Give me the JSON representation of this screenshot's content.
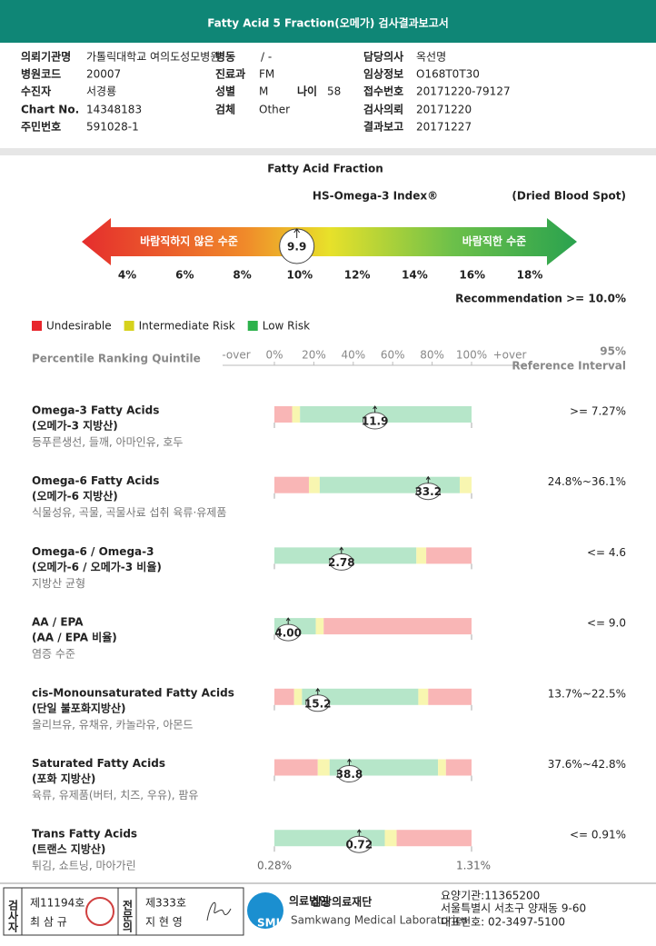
{
  "header": {
    "title": "Fatty Acid 5 Fraction(오메가) 검사결과보고서"
  },
  "patient_info": [
    {
      "label": "의뢰기관명",
      "value": "가톨릭대학교 여의도성모병원"
    },
    {
      "label": "병동",
      "value": "/ -"
    },
    {
      "label": "담당의사",
      "value": "옥선명"
    },
    {
      "label": "병원코드",
      "value": "20007"
    },
    {
      "label": "진료과",
      "value": "FM"
    },
    {
      "label": "임상정보",
      "value": "O168T0T30"
    },
    {
      "label": "수진자",
      "value": "서경룡"
    },
    {
      "label": "성별",
      "value": "M"
    },
    {
      "label": "나이",
      "value": "58"
    },
    {
      "label": "접수번호",
      "value": "20171220-79127"
    },
    {
      "label": "Chart No.",
      "value": "14348183"
    },
    {
      "label": "검체",
      "value": "Other"
    },
    {
      "label": "검사의뢰",
      "value": "20171220"
    },
    {
      "label": "주민번호",
      "value": "591028-1"
    },
    {
      "label": "결과보고",
      "value": "20171227"
    }
  ],
  "index": {
    "title": "Fatty Acid Fraction",
    "subtitle": "HS-Omega-3 Index®",
    "sample": "(Dried Blood Spot)",
    "low_label": "바람직하지 않은 수준",
    "high_label": "바람직한 수준",
    "value": 9.9,
    "ticks": [
      {
        "value": 4,
        "label": "4%"
      },
      {
        "value": 6,
        "label": "6%"
      },
      {
        "value": 8,
        "label": "8%"
      },
      {
        "value": 10,
        "label": "10%"
      },
      {
        "value": 12,
        "label": "12%"
      },
      {
        "value": 14,
        "label": "14%"
      },
      {
        "value": 16,
        "label": "16%"
      },
      {
        "value": 18,
        "label": "18%"
      }
    ],
    "recommendation": "Recommendation  >= 10.0%"
  },
  "legend": [
    {
      "label": "Undesirable",
      "color": "#e8262c"
    },
    {
      "label": "Intermediate Risk",
      "color": "#d6d21c"
    },
    {
      "label": "Low Risk",
      "color": "#2db24c"
    }
  ],
  "percentile": {
    "title": "Percentile Ranking Quintile",
    "over_low": "-over",
    "over_high": "+over",
    "ticks": [
      {
        "value": 0,
        "label": "0%"
      },
      {
        "value": 20,
        "label": "20%"
      },
      {
        "value": 40,
        "label": "40%"
      },
      {
        "value": 60,
        "label": "60%"
      },
      {
        "value": 80,
        "label": "80%"
      },
      {
        "value": 100,
        "label": "100%"
      }
    ],
    "ref_title": "95%",
    "ref_subtitle": "Reference Interval"
  },
  "rows": [
    {
      "name": "Omega-3 Fatty Acids",
      "korean": "(오메가-3 지방산)",
      "foods": "등푸른생선, 들깨, 아마인유, 호두",
      "value": 11.9,
      "percentile": 51,
      "reference": ">= 7.27%",
      "zones": [
        {
          "color": "#f9b6b6",
          "from": 0,
          "to": 9
        },
        {
          "color": "#f8f6b0",
          "from": 9,
          "to": 13
        },
        {
          "color": "#b6e6c9",
          "from": 13,
          "to": 100
        }
      ]
    },
    {
      "name": "Omega-6 Fatty Acids",
      "korean": "(오메가-6 지방산)",
      "foods": "식물성유, 곡물, 곡물사료 섭취 육류·유제품",
      "value": 33.2,
      "percentile": 78,
      "reference": "24.8%~36.1%",
      "zones": [
        {
          "color": "#f9b6b6",
          "from": 0,
          "to": 17.5
        },
        {
          "color": "#f8f6b0",
          "from": 17.5,
          "to": 23
        },
        {
          "color": "#b6e6c9",
          "from": 23,
          "to": 94
        },
        {
          "color": "#f8f6b0",
          "from": 94,
          "to": 100
        }
      ]
    },
    {
      "name": "Omega-6 / Omega-3",
      "korean": "(오메가-6 / 오메가-3 비율)",
      "foods": "지방산 균형",
      "value": 2.78,
      "percentile": 34,
      "reference": "<= 4.6",
      "zones": [
        {
          "color": "#b6e6c9",
          "from": 0,
          "to": 72
        },
        {
          "color": "#f8f6b0",
          "from": 72,
          "to": 77
        },
        {
          "color": "#f9b6b6",
          "from": 77,
          "to": 100
        }
      ]
    },
    {
      "name": "AA / EPA",
      "korean": "(AA / EPA 비율)",
      "foods": "염증 수준",
      "value": 4,
      "value_label": "4.00",
      "percentile": 7,
      "reference": "<= 9.0",
      "zones": [
        {
          "color": "#b6e6c9",
          "from": 0,
          "to": 21
        },
        {
          "color": "#f8f6b0",
          "from": 21,
          "to": 25
        },
        {
          "color": "#f9b6b6",
          "from": 25,
          "to": 100
        }
      ]
    },
    {
      "name": "cis-Monounsaturated Fatty Acids",
      "korean": "(단일 불포화지방산)",
      "foods": "올리브유, 유채유, 카놀라유, 아몬드",
      "value": 15.2,
      "percentile": 22,
      "reference": "13.7%~22.5%",
      "zones": [
        {
          "color": "#f9b6b6",
          "from": 0,
          "to": 10
        },
        {
          "color": "#f8f6b0",
          "from": 10,
          "to": 14
        },
        {
          "color": "#b6e6c9",
          "from": 14,
          "to": 73
        },
        {
          "color": "#f8f6b0",
          "from": 73,
          "to": 78
        },
        {
          "color": "#f9b6b6",
          "from": 78,
          "to": 100
        }
      ]
    },
    {
      "name": "Saturated Fatty Acids",
      "korean": "(포화 지방산)",
      "foods": "육류, 유제품(버터, 치즈, 우유), 팜유",
      "value": 38.8,
      "percentile": 38,
      "reference": "37.6%~42.8%",
      "zones": [
        {
          "color": "#f9b6b6",
          "from": 0,
          "to": 22
        },
        {
          "color": "#f8f6b0",
          "from": 22,
          "to": 28
        },
        {
          "color": "#b6e6c9",
          "from": 28,
          "to": 83
        },
        {
          "color": "#f8f6b0",
          "from": 83,
          "to": 87
        },
        {
          "color": "#f9b6b6",
          "from": 87,
          "to": 100
        }
      ]
    },
    {
      "name": "Trans Fatty Acids",
      "korean": "(트랜스 지방산)",
      "foods": "튀김, 쇼트닝, 마아가린",
      "value": 0.72,
      "percentile": 43,
      "reference": "<= 0.91%",
      "scale_min": "0.28%",
      "scale_max": "1.31%",
      "zones": [
        {
          "color": "#b6e6c9",
          "from": 0,
          "to": 56
        },
        {
          "color": "#f8f6b0",
          "from": 56,
          "to": 62
        },
        {
          "color": "#f9b6b6",
          "from": 62,
          "to": 100
        }
      ]
    }
  ],
  "footer": {
    "checker_title": "검사자",
    "checker_no": "제11194호",
    "checker_name": "최 삼 규",
    "doctor_title": "전문의",
    "doctor_no": "제333호",
    "doctor_name": "지 현 영",
    "logo": "SML",
    "org_prefix": "의료법인",
    "org_name": "삼광의료재단",
    "org_english": "Samkwang Medical Laboratories",
    "code": "요양기관:11365200",
    "address": "서울특별시 서초구 양재동 9-60",
    "phone": "대표번호: 02-3497-5100"
  }
}
